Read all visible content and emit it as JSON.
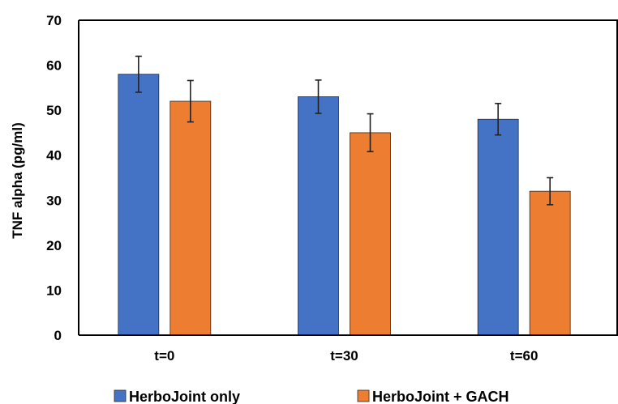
{
  "chart_data": {
    "type": "bar",
    "title": "",
    "xlabel": "",
    "ylabel": "TNF alpha (pg/ml)",
    "ylim": [
      0,
      70
    ],
    "yticks": [
      "0",
      "10",
      "20",
      "30",
      "40",
      "50",
      "60",
      "70"
    ],
    "categories": [
      "t=0",
      "t=30",
      "t=60"
    ],
    "series": [
      {
        "name": "HerboJoint only",
        "color": "#4472C4",
        "values": [
          58,
          53,
          48
        ],
        "errors": [
          4,
          3.7,
          3.5
        ]
      },
      {
        "name": "HerboJoint + GACH",
        "color": "#ED7D31",
        "values": [
          52,
          45,
          32
        ],
        "errors": [
          4.6,
          4.2,
          3
        ]
      }
    ],
    "grid": false,
    "legend_position": "bottom"
  }
}
